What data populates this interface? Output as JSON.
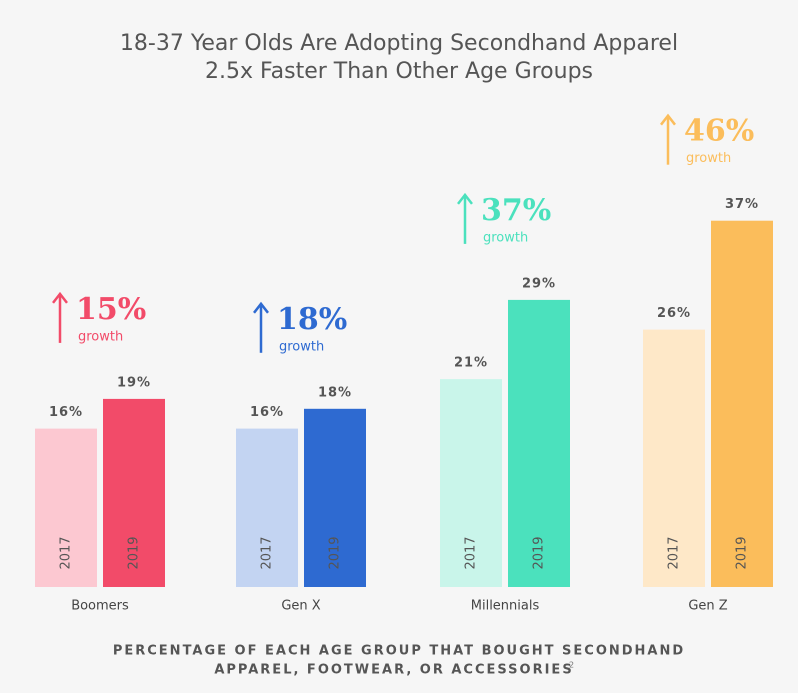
{
  "chart_data": {
    "type": "bar",
    "title": [
      "18-37 Year Olds Are Adopting Secondhand Apparel",
      "2.5x Faster Than Other Age Groups"
    ],
    "categories": [
      "Boomers",
      "Gen X",
      "Millennials",
      "Gen Z"
    ],
    "series": [
      {
        "name": "2017",
        "colors": [
          "#fcc8d1",
          "#c3d4f2",
          "#c9f5ea",
          "#fee8c8"
        ],
        "values": [
          16,
          16,
          21,
          26
        ],
        "value_labels": [
          "16%",
          "16%",
          "21%",
          "26%"
        ]
      },
      {
        "name": "2019",
        "colors": [
          "#f24b69",
          "#2e6ad1",
          "#4be1bd",
          "#fbbd5b"
        ],
        "values": [
          19,
          18,
          29,
          37
        ],
        "value_labels": [
          "19%",
          "18%",
          "29%",
          "37%"
        ]
      }
    ],
    "growth": [
      {
        "value": 15,
        "label": "15%"
      },
      {
        "value": 18,
        "label": "18%"
      },
      {
        "value": 37,
        "label": "37%"
      },
      {
        "value": 46,
        "label": "46%"
      }
    ],
    "growth_text": "growth",
    "caption": [
      "PERCENTAGE OF EACH AGE GROUP THAT BOUGHT SECONDHAND",
      "APPAREL, FOOTWEAR, OR ACCESSORIES"
    ],
    "footnote": "2"
  }
}
